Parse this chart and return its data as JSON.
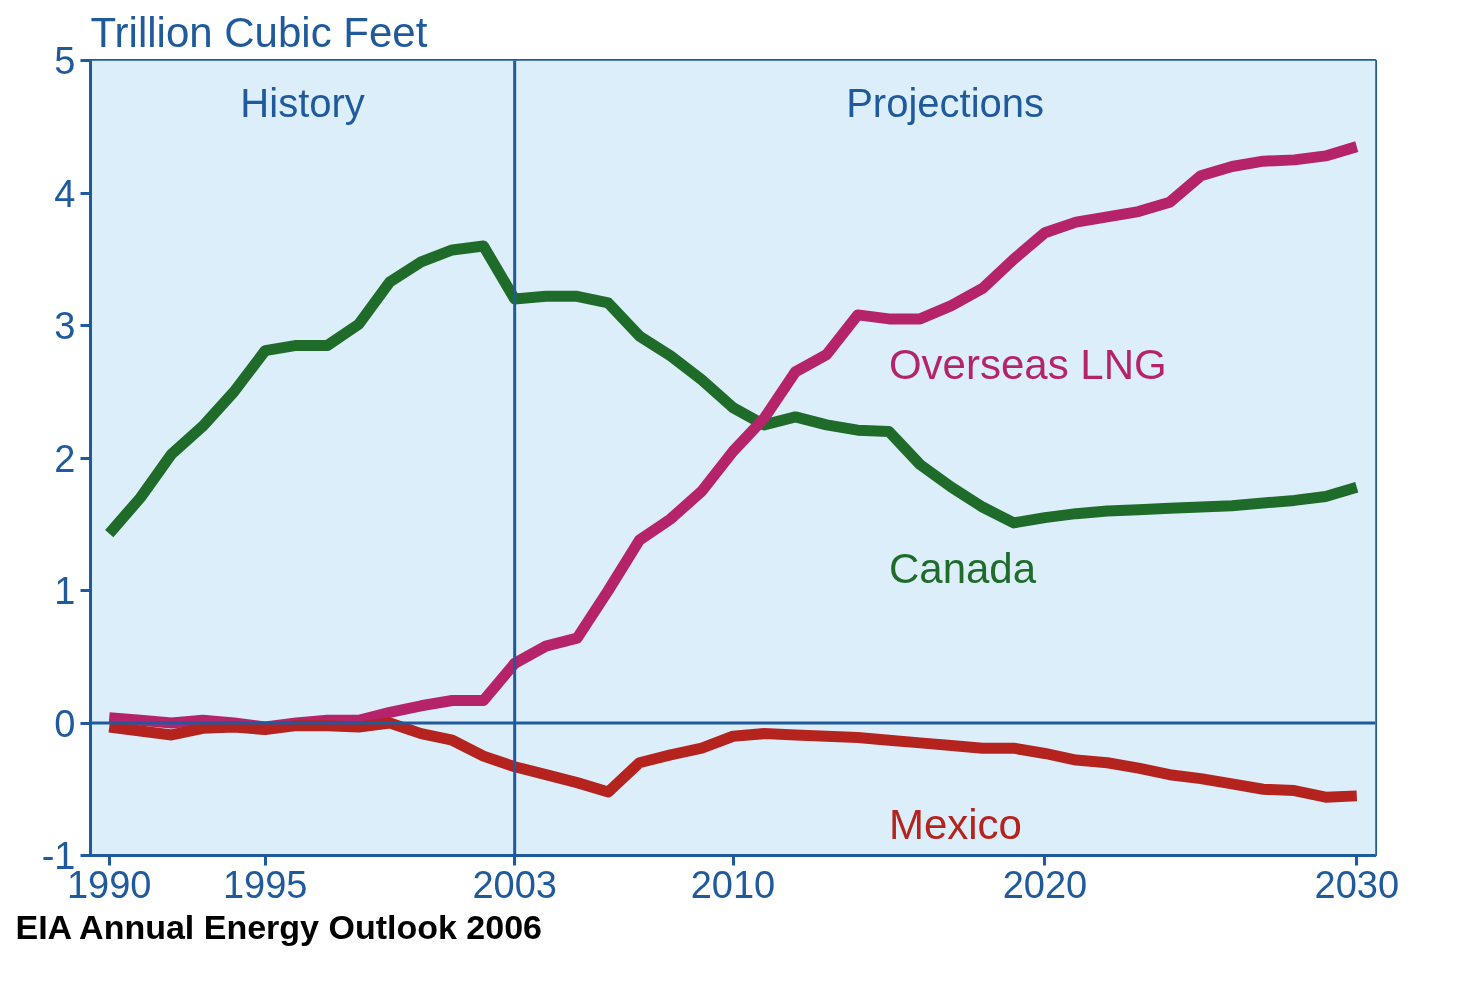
{
  "chart_data": {
    "type": "line",
    "ylabel": "Trillion Cubic Feet",
    "annotations": [
      "EIA Annual Energy Outlook 2006"
    ],
    "x": [
      1990,
      1991,
      1992,
      1993,
      1994,
      1995,
      1996,
      1997,
      1998,
      1999,
      2000,
      2001,
      2002,
      2003,
      2004,
      2005,
      2006,
      2007,
      2008,
      2009,
      2010,
      2011,
      2012,
      2013,
      2014,
      2015,
      2016,
      2017,
      2018,
      2019,
      2020,
      2021,
      2022,
      2023,
      2024,
      2025,
      2026,
      2027,
      2028,
      2029,
      2030
    ],
    "series": [
      {
        "name": "Canada",
        "color": "#1f6b2a",
        "values": [
          1.43,
          1.7,
          2.03,
          2.24,
          2.5,
          2.81,
          2.85,
          2.85,
          3.01,
          3.33,
          3.48,
          3.57,
          3.6,
          3.2,
          3.22,
          3.22,
          3.17,
          2.92,
          2.77,
          2.59,
          2.38,
          2.25,
          2.31,
          2.25,
          2.21,
          2.2,
          1.95,
          1.78,
          1.63,
          1.51,
          1.55,
          1.58,
          1.6,
          1.61,
          1.62,
          1.63,
          1.64,
          1.66,
          1.68,
          1.71,
          1.78
        ]
      },
      {
        "name": "Overseas LNG",
        "color": "#b5236a",
        "values": [
          0.04,
          0.02,
          0.0,
          0.02,
          0.0,
          -0.03,
          0.0,
          0.02,
          0.02,
          0.08,
          0.13,
          0.17,
          0.17,
          0.45,
          0.58,
          0.64,
          1.0,
          1.38,
          1.54,
          1.75,
          2.05,
          2.3,
          2.65,
          2.78,
          3.08,
          3.05,
          3.05,
          3.15,
          3.28,
          3.5,
          3.7,
          3.78,
          3.82,
          3.86,
          3.93,
          4.13,
          4.2,
          4.24,
          4.25,
          4.28,
          4.35
        ]
      },
      {
        "name": "Mexico",
        "color": "#b5231f",
        "values": [
          -0.03,
          -0.06,
          -0.09,
          -0.04,
          -0.03,
          -0.05,
          -0.02,
          -0.02,
          -0.03,
          0.0,
          -0.08,
          -0.13,
          -0.25,
          -0.33,
          -0.39,
          -0.45,
          -0.52,
          -0.3,
          -0.24,
          -0.19,
          -0.1,
          -0.08,
          -0.09,
          -0.1,
          -0.11,
          -0.13,
          -0.15,
          -0.17,
          -0.19,
          -0.19,
          -0.23,
          -0.28,
          -0.3,
          -0.34,
          -0.39,
          -0.42,
          -0.46,
          -0.5,
          -0.51,
          -0.56,
          -0.55
        ]
      }
    ],
    "xlim": [
      1989.4,
      2030.6
    ],
    "xticks": [
      1990,
      1995,
      2003,
      2010,
      2020,
      2030
    ],
    "ylim": [
      -1,
      5
    ],
    "yticks": [
      -1,
      0,
      1,
      2,
      3,
      4,
      5
    ],
    "ref_lines": [
      {
        "axis": "x",
        "value": 2003,
        "color": "#1f5a9c"
      },
      {
        "axis": "y",
        "value": 0,
        "color": "#1f5a9c"
      }
    ],
    "bands": [
      {
        "axis": "x",
        "from": 1989.4,
        "to": 2003,
        "label": "History",
        "color": "#ddeefb"
      },
      {
        "axis": "x",
        "from": 2003,
        "to": 2030.6,
        "label": "Projections",
        "color": "#ddeefb"
      }
    ],
    "legend": false,
    "grid": false,
    "marker": "none",
    "line_style": "solid"
  }
}
